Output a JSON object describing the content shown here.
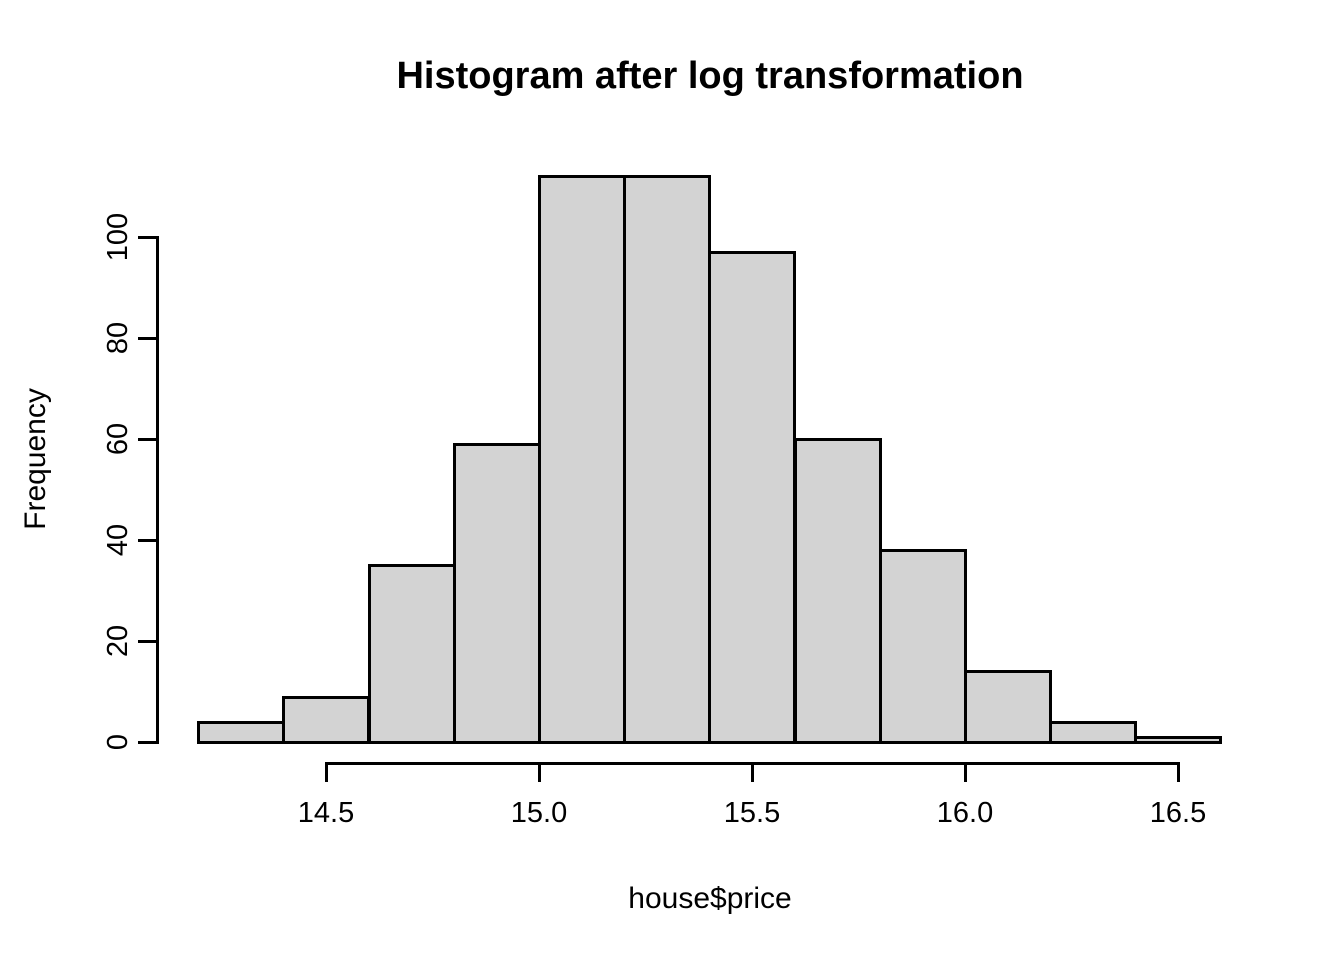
{
  "chart_data": {
    "type": "bar",
    "subtype": "histogram",
    "title": "Histogram after log transformation",
    "xlabel": "house$price",
    "ylabel": "Frequency",
    "bin_edges": [
      14.2,
      14.4,
      14.6,
      14.8,
      15.0,
      15.2,
      15.4,
      15.6,
      15.8,
      16.0,
      16.2,
      16.4,
      16.6
    ],
    "counts": [
      4,
      9,
      35,
      59,
      112,
      112,
      97,
      60,
      38,
      14,
      4,
      1
    ],
    "x_ticks": [
      {
        "value": 14.5,
        "label": "14.5"
      },
      {
        "value": 15.0,
        "label": "15.0"
      },
      {
        "value": 15.5,
        "label": "15.5"
      },
      {
        "value": 16.0,
        "label": "16.0"
      },
      {
        "value": 16.5,
        "label": "16.5"
      }
    ],
    "y_ticks": [
      {
        "value": 0,
        "label": "0"
      },
      {
        "value": 20,
        "label": "20"
      },
      {
        "value": 40,
        "label": "40"
      },
      {
        "value": 60,
        "label": "60"
      },
      {
        "value": 80,
        "label": "80"
      },
      {
        "value": 100,
        "label": "100"
      }
    ],
    "xlim": [
      14.104,
      16.696
    ],
    "ylim": [
      0,
      112
    ],
    "grid": false,
    "legend": "none",
    "colors": {
      "bar_fill": "#d3d3d3",
      "bar_border": "#000000",
      "axis": "#000000",
      "text": "#000000",
      "background": "#ffffff"
    }
  }
}
